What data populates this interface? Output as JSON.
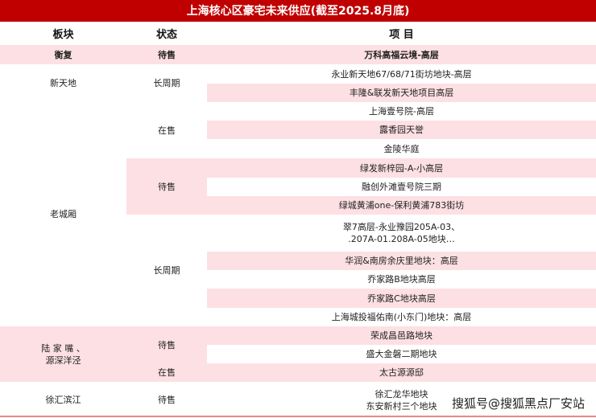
{
  "title": "上海核心区豪宅未来供应(截至2025.8月底)",
  "headers": {
    "region": "板块",
    "status": "状态",
    "project": "项 目"
  },
  "rows": [
    {
      "region": "衡复",
      "status": "待售",
      "project": "万科高福云境-高层"
    },
    {
      "region": "新天地",
      "status": "长周期",
      "projects": [
        "永业新天地67/68/71街坊地块-高层",
        "丰隆&联发新天地项目高层"
      ]
    },
    {
      "region": "老城厢",
      "groups": [
        {
          "status": "在售",
          "projects": [
            "上海壹号院-高层",
            "露香园天誉",
            "金陵华庭"
          ]
        },
        {
          "status": "待售",
          "projects": [
            "绿发新梓园-A-小高层",
            "融创外滩壹号院三期",
            "绿城黄浦one-保利黄浦783街坊"
          ]
        },
        {
          "status": "长周期",
          "projects": [
            "翠7高层-永业豫园205A-03、",
            "华润&南房余庆里地块：高层",
            "乔家路B地块高层",
            "乔家路C地块高层",
            "上海城投福佑南(小东门)地块：高层"
          ],
          "project_line2": ".207A-01.208A-05地块…"
        }
      ]
    },
    {
      "region_line1": "陆 家 嘴 、",
      "region_line2": "源深洋泾",
      "groups": [
        {
          "status": "待售",
          "projects": [
            "荣成昌邑路地块",
            "盛大金磐二期地块"
          ]
        },
        {
          "status": "在售",
          "projects": [
            "太古源源邸"
          ]
        }
      ]
    },
    {
      "region": "徐汇滨江",
      "status": "待售",
      "project_line1": "徐汇龙华地块",
      "project_line2": "东安新村三个地块"
    }
  ],
  "watermark": "搜狐号@搜狐黑点厂安站",
  "colors": {
    "title_bg": "#c00000",
    "highlight": "#fde0e3"
  }
}
